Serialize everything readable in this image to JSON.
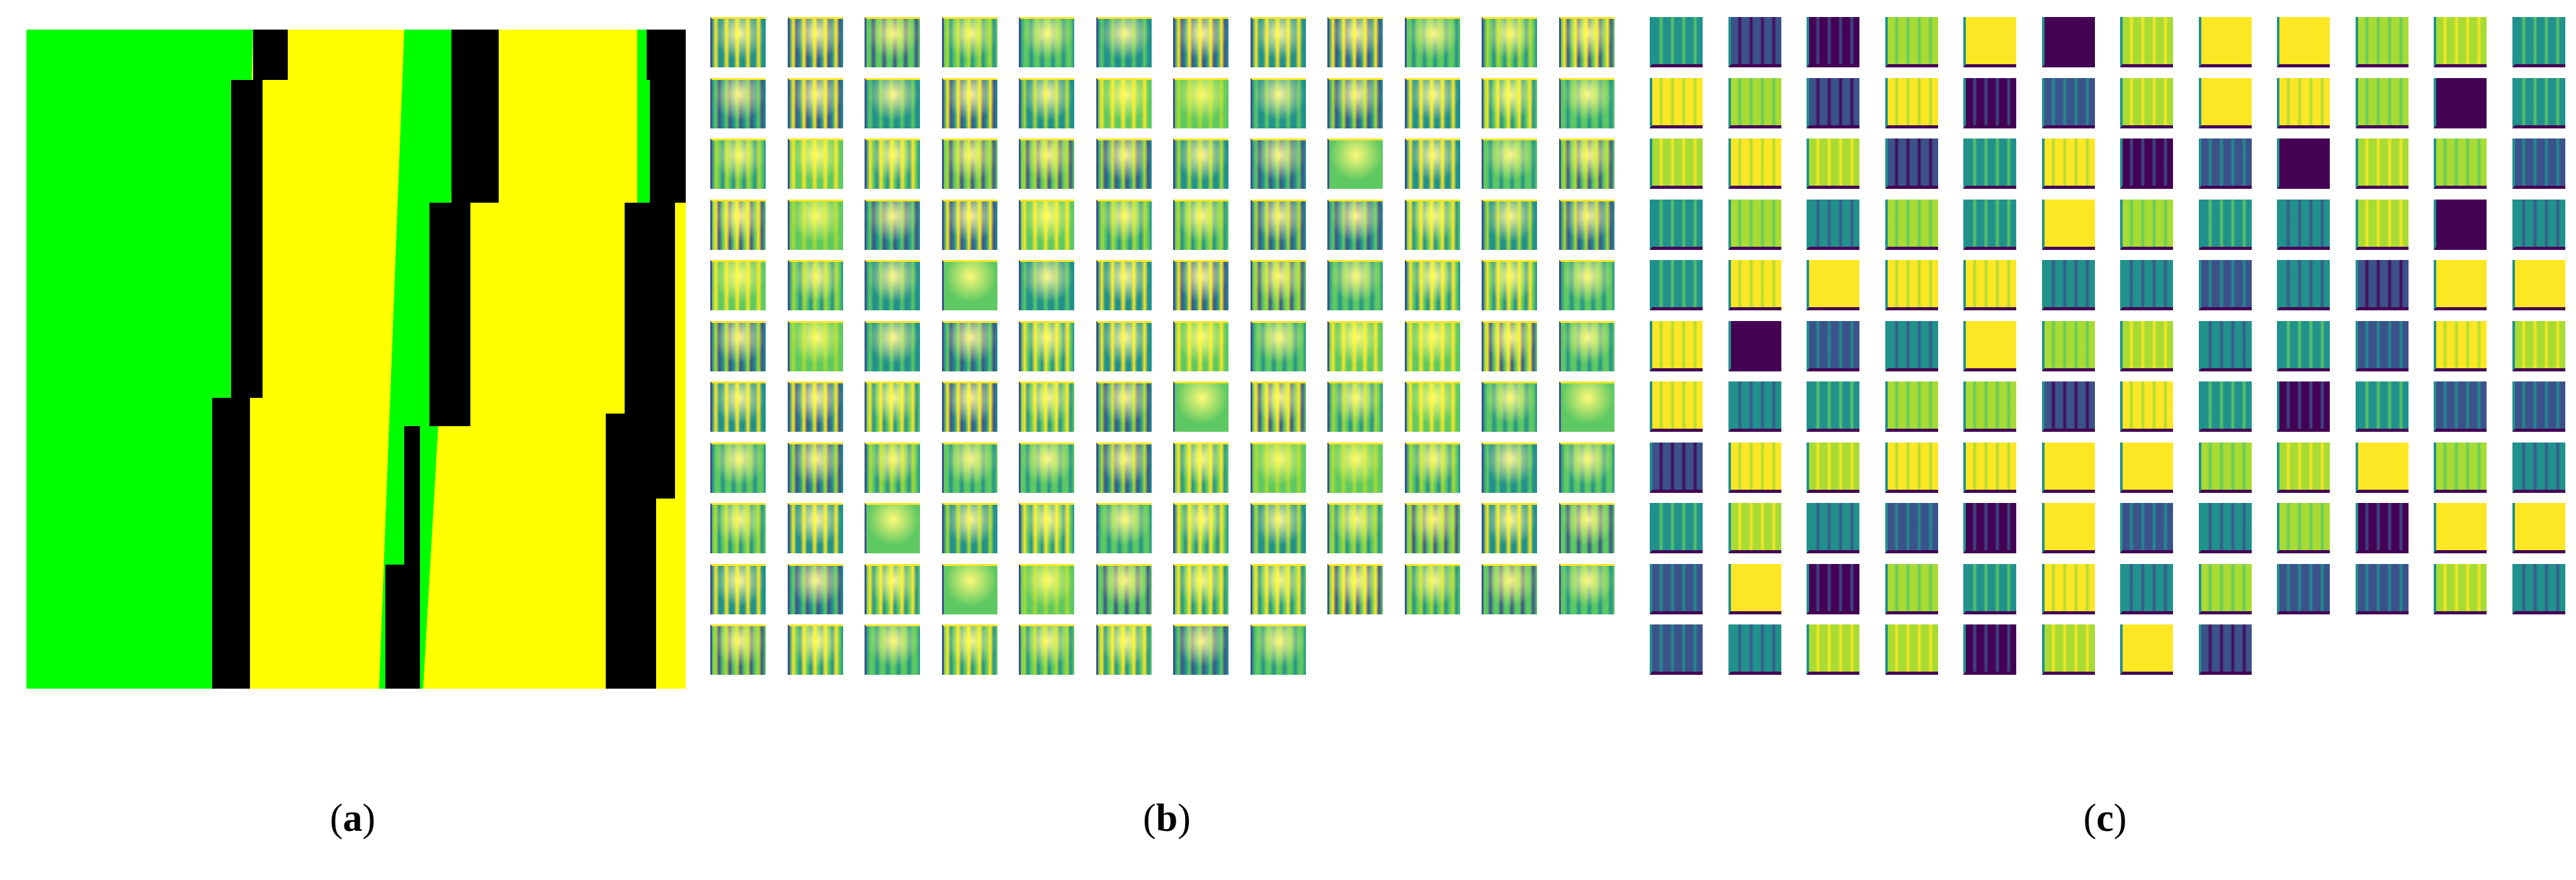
{
  "figure": {
    "panels": [
      {
        "id": "a",
        "caption_open": "(",
        "caption_letter": "a",
        "caption_close": ")",
        "content": "segmentation-mask",
        "colors": [
          "#00ff00",
          "#ffff00",
          "#000000"
        ]
      },
      {
        "id": "b",
        "caption_open": "(",
        "caption_letter": "b",
        "caption_close": ")",
        "content": "feature-map-grid",
        "rows": 11,
        "cols": 12,
        "last_row_count": 8,
        "colormap": "viridis"
      },
      {
        "id": "c",
        "caption_open": "(",
        "caption_letter": "c",
        "caption_close": ")",
        "content": "feature-map-grid",
        "rows": 11,
        "cols": 12,
        "last_row_count": 8,
        "colormap": "viridis"
      }
    ]
  }
}
